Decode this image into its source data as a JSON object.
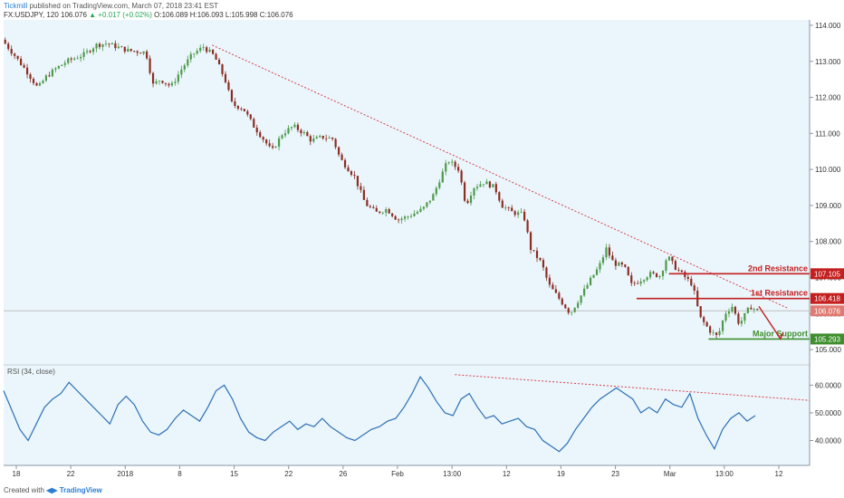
{
  "header": {
    "publisher": "Tickmill",
    "published_text": "published on TradingView.com, March 07, 2018 23:41 EST",
    "symbol": "FX:USDJPY, 120",
    "last": "106.076",
    "change": "▲ +0.017 (+0.02%)",
    "ohlc": "O:106.089 H:106.093 L:105.998 C:106.076"
  },
  "footer": {
    "created_with": "Created with",
    "brand": "TradingView"
  },
  "colors": {
    "background": "#eaf6fc",
    "up": "#4f9a4a",
    "down": "#8c2e24",
    "trendline": "#d9404a",
    "resistance": "#c41e1e",
    "support": "#3e8e2d",
    "rsi": "#2e6fb5",
    "last_price_tag": "#e07a72"
  },
  "chart_data": [
    {
      "type": "candlestick",
      "ylim": [
        104.6,
        114.15
      ],
      "y_ticks": [
        "114.000",
        "113.000",
        "112.000",
        "111.000",
        "110.000",
        "109.000",
        "108.000",
        "107.000",
        "106.000",
        "105.000"
      ],
      "x_ticks": [
        "18",
        "22",
        "2018",
        "8",
        "15",
        "22",
        "26",
        "Feb",
        "13:00",
        "12",
        "19",
        "23",
        "Mar",
        "13:00",
        "12"
      ],
      "close_path": [
        {
          "x": 0,
          "y": 113.6
        },
        {
          "x": 8,
          "y": 113.1
        },
        {
          "x": 14,
          "y": 112.7
        },
        {
          "x": 20,
          "y": 112.25
        },
        {
          "x": 24,
          "y": 112.55
        },
        {
          "x": 30,
          "y": 112.8
        },
        {
          "x": 36,
          "y": 113.0
        },
        {
          "x": 46,
          "y": 113.2
        },
        {
          "x": 52,
          "y": 113.45
        },
        {
          "x": 58,
          "y": 113.5
        },
        {
          "x": 70,
          "y": 113.3
        },
        {
          "x": 80,
          "y": 113.25
        },
        {
          "x": 84,
          "y": 112.35
        },
        {
          "x": 88,
          "y": 112.5
        },
        {
          "x": 94,
          "y": 112.3
        },
        {
          "x": 100,
          "y": 112.8
        },
        {
          "x": 106,
          "y": 113.2
        },
        {
          "x": 112,
          "y": 113.4
        },
        {
          "x": 118,
          "y": 113.15
        },
        {
          "x": 124,
          "y": 112.5
        },
        {
          "x": 128,
          "y": 111.8
        },
        {
          "x": 134,
          "y": 111.7
        },
        {
          "x": 140,
          "y": 111.2
        },
        {
          "x": 146,
          "y": 110.8
        },
        {
          "x": 150,
          "y": 110.5
        },
        {
          "x": 156,
          "y": 111.0
        },
        {
          "x": 162,
          "y": 111.2
        },
        {
          "x": 168,
          "y": 111.0
        },
        {
          "x": 172,
          "y": 110.8
        },
        {
          "x": 178,
          "y": 110.9
        },
        {
          "x": 184,
          "y": 110.85
        },
        {
          "x": 188,
          "y": 110.3
        },
        {
          "x": 196,
          "y": 109.8
        },
        {
          "x": 202,
          "y": 109.05
        },
        {
          "x": 208,
          "y": 108.8
        },
        {
          "x": 214,
          "y": 108.9
        },
        {
          "x": 220,
          "y": 108.6
        },
        {
          "x": 226,
          "y": 108.7
        },
        {
          "x": 234,
          "y": 108.9
        },
        {
          "x": 240,
          "y": 109.3
        },
        {
          "x": 244,
          "y": 109.8
        },
        {
          "x": 248,
          "y": 110.25
        },
        {
          "x": 254,
          "y": 110.0
        },
        {
          "x": 258,
          "y": 109.0
        },
        {
          "x": 262,
          "y": 109.5
        },
        {
          "x": 268,
          "y": 109.65
        },
        {
          "x": 274,
          "y": 109.5
        },
        {
          "x": 278,
          "y": 109.0
        },
        {
          "x": 284,
          "y": 108.8
        },
        {
          "x": 290,
          "y": 108.75
        },
        {
          "x": 294,
          "y": 107.8
        },
        {
          "x": 300,
          "y": 107.4
        },
        {
          "x": 304,
          "y": 106.8
        },
        {
          "x": 310,
          "y": 106.4
        },
        {
          "x": 316,
          "y": 106.0
        },
        {
          "x": 322,
          "y": 106.5
        },
        {
          "x": 328,
          "y": 107.0
        },
        {
          "x": 332,
          "y": 107.3
        },
        {
          "x": 336,
          "y": 107.8
        },
        {
          "x": 340,
          "y": 107.4
        },
        {
          "x": 346,
          "y": 107.3
        },
        {
          "x": 350,
          "y": 106.8
        },
        {
          "x": 354,
          "y": 106.9
        },
        {
          "x": 360,
          "y": 107.1
        },
        {
          "x": 366,
          "y": 107.05
        },
        {
          "x": 370,
          "y": 107.6
        },
        {
          "x": 374,
          "y": 107.3
        },
        {
          "x": 380,
          "y": 107.0
        },
        {
          "x": 384,
          "y": 106.8
        },
        {
          "x": 388,
          "y": 105.9
        },
        {
          "x": 394,
          "y": 105.5
        },
        {
          "x": 398,
          "y": 105.35
        },
        {
          "x": 402,
          "y": 106.0
        },
        {
          "x": 406,
          "y": 106.2
        },
        {
          "x": 410,
          "y": 105.7
        },
        {
          "x": 416,
          "y": 106.2
        },
        {
          "x": 420,
          "y": 106.08
        }
      ],
      "levels": [
        {
          "label": "2nd Resistance",
          "value": 107.105
        },
        {
          "label": "1st Resistance",
          "value": 106.418
        },
        {
          "label": "Major Support",
          "value": 105.293
        }
      ],
      "last_price": 106.076,
      "trendline": [
        {
          "x": 116,
          "y": 113.45
        },
        {
          "x": 436,
          "y": 106.15
        }
      ],
      "projection_arrow": [
        {
          "x": 420,
          "y": 106.2
        },
        {
          "x": 432,
          "y": 105.3
        }
      ]
    },
    {
      "type": "line",
      "title": "RSI (34, close)",
      "ylim": [
        31,
        67
      ],
      "y_ticks": [
        "60.0000",
        "50.0000",
        "40.0000"
      ],
      "series": [
        {
          "values": [
            58,
            51,
            44,
            40,
            46,
            52,
            55,
            57,
            61,
            58,
            55,
            52,
            49,
            46,
            53,
            56,
            53,
            47,
            43,
            42,
            44,
            48,
            51,
            49,
            47,
            52,
            58,
            60,
            55,
            48,
            43,
            41,
            40,
            43,
            45,
            47,
            44,
            46,
            45,
            48,
            45,
            43,
            41,
            40,
            42,
            44,
            45,
            47,
            48,
            52,
            57,
            63,
            59,
            54,
            50,
            49,
            55,
            57,
            52,
            48,
            49,
            46,
            47,
            48,
            45,
            44,
            40,
            38,
            36,
            39,
            44,
            48,
            52,
            55,
            57,
            59,
            57,
            55,
            50,
            52,
            50,
            55,
            53,
            52,
            57,
            48,
            42,
            37,
            44,
            48,
            50,
            47,
            49
          ]
        }
      ],
      "trendline": [
        {
          "x": 0.56,
          "y": 63.8
        },
        {
          "x": 1.0,
          "y": 54.5
        }
      ]
    }
  ]
}
